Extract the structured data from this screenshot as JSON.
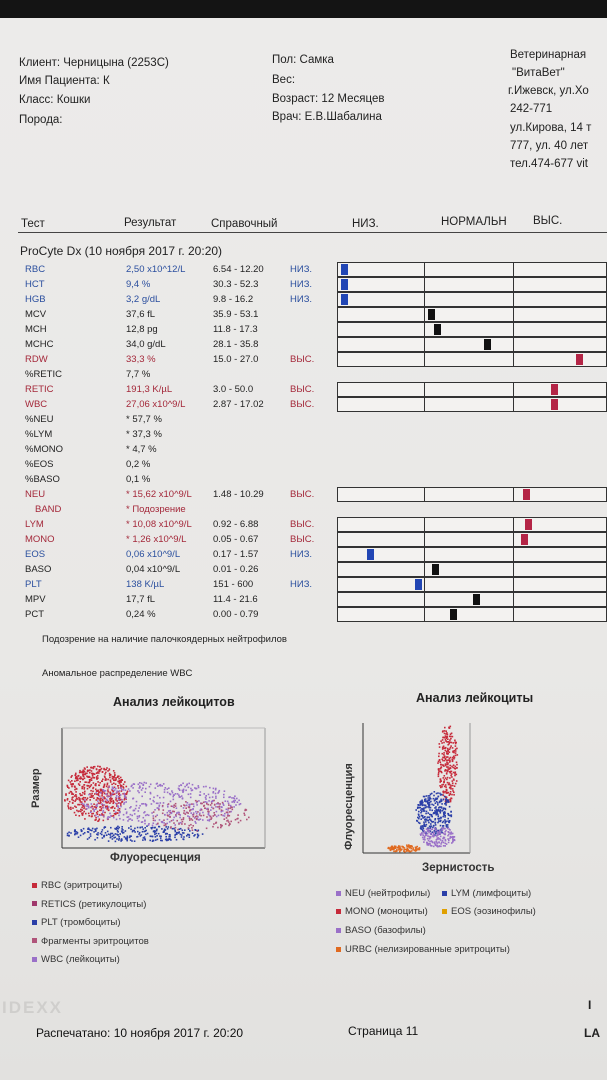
{
  "header": {
    "client_label": "Клиент:",
    "client": "Черницына (2253C)",
    "patient_label": "Имя Пациента:",
    "patient": "К",
    "class_label": "Класс:",
    "class": "Кошки",
    "breed_label": "Порода:",
    "breed": "",
    "sex_label": "Пол:",
    "sex": "Самка",
    "weight_label": "Вес:",
    "weight": "",
    "age_label": "Возраст:",
    "age": "12 Месяцев",
    "doctor_label": "Врач:",
    "doctor": "Е.В.Шабалина"
  },
  "clinic": {
    "line1": "Ветеринарная",
    "line2": "\"ВитаВет\"",
    "line3": "г.Ижевск, ул.Хо",
    "line4": "242-771",
    "line5": "ул.Кирова, 14 т",
    "line6": "777, ул. 40 лет",
    "line7": "тел.474-677 vit"
  },
  "columns": {
    "test": "Тест",
    "result": "Результат",
    "reference": "Справочный",
    "low": "НИЗ.",
    "normal": "НОРМАЛЬН",
    "high": "ВЫС."
  },
  "method": "ProCyte Dx (10 ноября 2017 г. 20:20)",
  "rows": [
    {
      "name": "RBC",
      "value": "2,50 x10^12/L",
      "ref": "6.54 - 12.20",
      "flag": "НИЗ.",
      "color": "#2b4f9e",
      "gauge": true,
      "marker": 0.01,
      "marker_color": "#2146b4"
    },
    {
      "name": "HCT",
      "value": "9,4 %",
      "ref": "30.3 - 52.3",
      "flag": "НИЗ.",
      "color": "#2b4f9e",
      "gauge": true,
      "marker": 0.01,
      "marker_color": "#2146b4"
    },
    {
      "name": "HGB",
      "value": "3,2 g/dL",
      "ref": "9.8 - 16.2",
      "flag": "НИЗ.",
      "color": "#2b4f9e",
      "gauge": true,
      "marker": 0.01,
      "marker_color": "#2146b4"
    },
    {
      "name": "MCV",
      "value": "37,6 fL",
      "ref": "35.9 - 53.1",
      "flag": "",
      "color": "#222222",
      "gauge": true,
      "marker": 0.345,
      "marker_color": "#111111"
    },
    {
      "name": "MCH",
      "value": "12,8 pg",
      "ref": "11.8 - 17.3",
      "flag": "",
      "color": "#222222",
      "gauge": true,
      "marker": 0.37,
      "marker_color": "#111111"
    },
    {
      "name": "MCHC",
      "value": "34,0 g/dL",
      "ref": "28.1 - 35.8",
      "flag": "",
      "color": "#222222",
      "gauge": true,
      "marker": 0.56,
      "marker_color": "#111111"
    },
    {
      "name": "RDW",
      "value": "33,3 %",
      "ref": "15.0 - 27.0",
      "flag": "ВЫС.",
      "color": "#a4283a",
      "gauge": true,
      "marker": 0.915,
      "marker_color": "#b42546"
    },
    {
      "name": "%RETIC",
      "value": "7,7 %",
      "ref": "",
      "flag": "",
      "color": "#222222",
      "gauge": false
    },
    {
      "name": "RETIC",
      "value": "191,3 K/µL",
      "ref": "3.0 - 50.0",
      "flag": "ВЫС.",
      "color": "#a4283a",
      "gauge": true,
      "marker": 0.82,
      "marker_color": "#b42546"
    },
    {
      "name": "WBC",
      "value": "27,06 x10^9/L",
      "ref": "2.87 - 17.02",
      "flag": "ВЫС.",
      "color": "#a4283a",
      "gauge": true,
      "marker": 0.82,
      "marker_color": "#b42546"
    },
    {
      "name": "%NEU",
      "value": "* 57,7 %",
      "ref": "",
      "flag": "",
      "color": "#222222",
      "gauge": false
    },
    {
      "name": "%LYM",
      "value": "* 37,3 %",
      "ref": "",
      "flag": "",
      "color": "#222222",
      "gauge": false
    },
    {
      "name": "%MONO",
      "value": "* 4,7 %",
      "ref": "",
      "flag": "",
      "color": "#222222",
      "gauge": false
    },
    {
      "name": "%EOS",
      "value": "0,2 %",
      "ref": "",
      "flag": "",
      "color": "#222222",
      "gauge": false
    },
    {
      "name": "%BASO",
      "value": "0,1 %",
      "ref": "",
      "flag": "",
      "color": "#222222",
      "gauge": false
    },
    {
      "name": "NEU",
      "value": "* 15,62 x10^9/L",
      "ref": "1.48 - 10.29",
      "flag": "ВЫС.",
      "color": "#a4283a",
      "gauge": true,
      "marker": 0.71,
      "marker_color": "#b42546"
    },
    {
      "name": "BAND",
      "value": "* Подозрение",
      "ref": "",
      "flag": "",
      "color": "#a4283a",
      "gauge": false,
      "indent": true
    },
    {
      "name": "LYM",
      "value": "* 10,08 x10^9/L",
      "ref": "0.92 - 6.88",
      "flag": "ВЫС.",
      "color": "#a4283a",
      "gauge": true,
      "marker": 0.72,
      "marker_color": "#b42546"
    },
    {
      "name": "MONO",
      "value": "* 1,26 x10^9/L",
      "ref": "0.05 - 0.67",
      "flag": "ВЫС.",
      "color": "#a4283a",
      "gauge": true,
      "marker": 0.705,
      "marker_color": "#b42546"
    },
    {
      "name": "EOS",
      "value": "0,06 x10^9/L",
      "ref": "0.17 - 1.57",
      "flag": "НИЗ.",
      "color": "#2b4f9e",
      "gauge": true,
      "marker": 0.11,
      "marker_color": "#2146b4"
    },
    {
      "name": "BASO",
      "value": "0,04 x10^9/L",
      "ref": "0.01 - 0.26",
      "flag": "",
      "color": "#222222",
      "gauge": true,
      "marker": 0.36,
      "marker_color": "#111111"
    },
    {
      "name": "PLT",
      "value": "138 K/µL",
      "ref": "151 - 600",
      "flag": "НИЗ.",
      "color": "#2b4f9e",
      "gauge": true,
      "marker": 0.295,
      "marker_color": "#2146b4"
    },
    {
      "name": "MPV",
      "value": "17,7 fL",
      "ref": "11.4 - 21.6",
      "flag": "",
      "color": "#222222",
      "gauge": true,
      "marker": 0.52,
      "marker_color": "#111111"
    },
    {
      "name": "PCT",
      "value": "0,24 %",
      "ref": "0.00 - 0.79",
      "flag": "",
      "color": "#222222",
      "gauge": true,
      "marker": 0.43,
      "marker_color": "#111111"
    }
  ],
  "notes": {
    "band": "Подозрение на наличие палочкоядерных нейтрофилов",
    "wbc": "Аномальное распределение WBC"
  },
  "plot1": {
    "title": "Анализ лейкоцитов",
    "ylabel": "Размер",
    "xlabel": "Флуоресценция",
    "legend": [
      {
        "label": "RBC (эритроциты)",
        "color": "#c62a3a"
      },
      {
        "label": "RETICS (ретикулоциты)",
        "color": "#a0386c"
      },
      {
        "label": "PLT (тромбоциты)",
        "color": "#2b3fa8"
      },
      {
        "label": "Фрагменты эритроцитов",
        "color": "#b0547a"
      },
      {
        "label": "WBC (лейкоциты)",
        "color": "#9a70c8"
      }
    ]
  },
  "plot2": {
    "title": "Анализ лейкоциты",
    "ylabel": "Флуоресценция",
    "xlabel": "Зернистость",
    "legend": [
      {
        "label": "NEU (нейтрофилы)",
        "color": "#9a70c8"
      },
      {
        "label": "LYM (лимфоциты)",
        "color": "#2b3fa8"
      },
      {
        "label": "MONO (моноциты)",
        "color": "#c62a3a"
      },
      {
        "label": "EOS (эозинофилы)",
        "color": "#e0a000"
      },
      {
        "label": "BASO (базофилы)",
        "color": "#9a70c8"
      },
      {
        "label": "URBC (нелизированные эритроциты)",
        "color": "#e06a20"
      }
    ]
  },
  "footer": {
    "printed_label": "Распечатано:",
    "printed": "10 ноября 2017 г. 20:20",
    "page_label": "Страница",
    "page": "11",
    "logo_text": "IDEXX",
    "mark_line1": "I",
    "mark_line2": "LA"
  }
}
